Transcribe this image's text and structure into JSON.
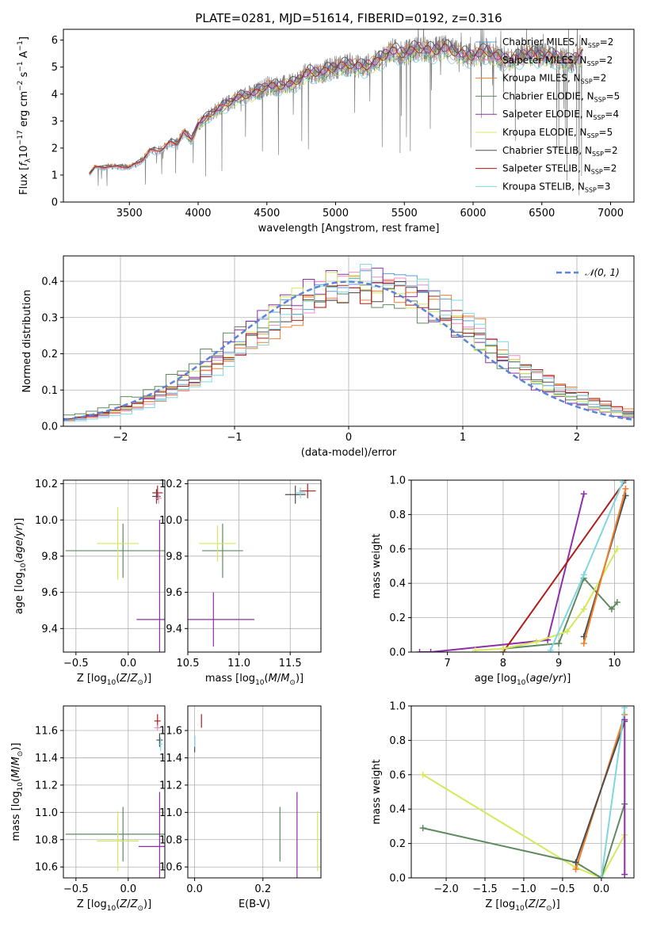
{
  "figure_title": "PLATE=0281, MJD=51614, FIBERID=0192, z=0.316",
  "colors": {
    "chabrier_miles": "#5b9bd5",
    "salpeter_miles": "#f08cc0",
    "kroupa_miles": "#f07f2b",
    "chabrier_elodie": "#5e8a5e",
    "salpeter_elodie": "#8e2ea8",
    "kroupa_elodie": "#d4e85a",
    "chabrier_stelib": "#4d4d4d",
    "salpeter_stelib": "#b01c1c",
    "kroupa_stelib": "#7fd6e0",
    "data": "#808080",
    "normal": "#5b84d8"
  },
  "legend_spectrum": [
    {
      "label": "Chabrier MILES, N",
      "sub": "SSP",
      "suffix": "=2",
      "color_key": "chabrier_miles"
    },
    {
      "label": "Salpeter MILES, N",
      "sub": "SSP",
      "suffix": "=2",
      "color_key": "salpeter_miles"
    },
    {
      "label": "Kroupa MILES, N",
      "sub": "SSP",
      "suffix": "=2",
      "color_key": "kroupa_miles"
    },
    {
      "label": "Chabrier ELODIE, N",
      "sub": "SSP",
      "suffix": "=5",
      "color_key": "chabrier_elodie"
    },
    {
      "label": "Salpeter ELODIE, N",
      "sub": "SSP",
      "suffix": "=4",
      "color_key": "salpeter_elodie"
    },
    {
      "label": "Kroupa ELODIE, N",
      "sub": "SSP",
      "suffix": "=5",
      "color_key": "kroupa_elodie"
    },
    {
      "label": "Chabrier STELIB, N",
      "sub": "SSP",
      "suffix": "=2",
      "color_key": "chabrier_stelib"
    },
    {
      "label": "Salpeter STELIB, N",
      "sub": "SSP",
      "suffix": "=2",
      "color_key": "salpeter_stelib"
    },
    {
      "label": "Kroupa STELIB, N",
      "sub": "SSP",
      "suffix": "=3",
      "color_key": "kroupa_stelib"
    }
  ],
  "legend_hist": {
    "label": "𝒩(0, 1)"
  },
  "chart_data": [
    {
      "id": "spectrum",
      "type": "line",
      "xlabel": "wavelength [Angstrom, rest frame]",
      "ylabel": "Flux [f_λ 10^-17 erg cm^-2 s^-1 A^-1]",
      "xlim": [
        3020,
        7170
      ],
      "ylim": [
        0,
        6.4
      ],
      "xticks": [
        3500,
        4000,
        4500,
        5000,
        5500,
        6000,
        6500,
        7000
      ],
      "yticks": [
        0,
        1,
        2,
        3,
        4,
        5,
        6
      ],
      "model_curve": {
        "x": [
          3200,
          3250,
          3300,
          3350,
          3400,
          3450,
          3500,
          3550,
          3600,
          3650,
          3700,
          3750,
          3800,
          3850,
          3900,
          3950,
          4000,
          4100,
          4200,
          4300,
          4400,
          4500,
          4600,
          4700,
          4800,
          4900,
          5000,
          5100,
          5200,
          5300,
          5400,
          5500,
          5600,
          5700,
          5800,
          5900,
          6000,
          6100,
          6200,
          6300,
          6400,
          6500,
          6600,
          6700,
          6800
        ],
        "y": [
          1.0,
          1.3,
          1.25,
          1.35,
          1.3,
          1.3,
          1.3,
          1.4,
          1.6,
          1.9,
          1.9,
          2.0,
          2.2,
          2.2,
          2.6,
          2.3,
          2.9,
          3.3,
          3.6,
          3.9,
          4.0,
          4.3,
          4.3,
          4.4,
          4.8,
          4.8,
          5.0,
          5.1,
          5.0,
          5.2,
          5.6,
          5.5,
          5.7,
          5.6,
          5.7,
          5.5,
          5.4,
          5.6,
          5.3,
          5.3,
          5.5,
          5.4,
          5.4,
          5.2,
          5.5
        ]
      },
      "series_scale": [
        1.0,
        0.97,
        1.02,
        0.98,
        1.01,
        0.96,
        1.03,
        1.0,
        0.94
      ]
    },
    {
      "id": "residual_hist",
      "type": "line",
      "xlabel": "(data-model)/error",
      "ylabel": "Normed distribution",
      "xlim": [
        -2.5,
        2.5
      ],
      "ylim": [
        0,
        0.47
      ],
      "xticks": [
        -2,
        -1,
        0,
        1,
        2
      ],
      "xticklabels": [
        "−2",
        "−1",
        "0",
        "1",
        "2"
      ],
      "yticks": [
        0.0,
        0.1,
        0.2,
        0.3,
        0.4
      ],
      "yticklabels": [
        "0.0",
        "0.1",
        "0.2",
        "0.3",
        "0.4"
      ]
    },
    {
      "id": "age_vs_Z",
      "type": "scatter",
      "xlabel": "Z [log10(Z/Z⊙)]",
      "ylabel": "age [log10(age/yr)]",
      "xlim": [
        -0.62,
        0.35
      ],
      "ylim": [
        9.27,
        10.22
      ],
      "xticks": [
        -0.5,
        0.0
      ],
      "xticklabels": [
        "−0.5",
        "0.0"
      ],
      "yticks": [
        9.4,
        9.6,
        9.8,
        10.0,
        10.2
      ],
      "yticklabels": [
        "9.4",
        "9.6",
        "9.8",
        "10.0",
        "10.2"
      ],
      "points": [
        {
          "x": -0.05,
          "y": 9.83,
          "xerr": 0.55,
          "yerr": 0.15,
          "color_key": "chabrier_elodie"
        },
        {
          "x": -0.1,
          "y": 9.87,
          "xerr": 0.2,
          "yerr": 0.2,
          "color_key": "kroupa_elodie"
        },
        {
          "x": 0.3,
          "y": 9.45,
          "xerr": 0.22,
          "yerr": 0.55,
          "color_key": "salpeter_elodie"
        },
        {
          "x": 0.28,
          "y": 10.15,
          "xerr": 0.05,
          "yerr": 0.04,
          "color_key": "salpeter_stelib"
        },
        {
          "x": 0.27,
          "y": 10.13,
          "xerr": 0.04,
          "yerr": 0.04,
          "color_key": "chabrier_stelib"
        },
        {
          "x": 0.29,
          "y": 10.12,
          "xerr": 0.03,
          "yerr": 0.03,
          "color_key": "salpeter_miles"
        }
      ]
    },
    {
      "id": "age_vs_mass",
      "type": "scatter",
      "xlabel": "mass [log10(M/M⊙)]",
      "ylabel": "",
      "xlim": [
        10.5,
        11.8
      ],
      "ylim": [
        9.27,
        10.22
      ],
      "xticks": [
        10.5,
        11.0,
        11.5
      ],
      "xticklabels": [
        "10.5",
        "11.0",
        "11.5"
      ],
      "yticks": [
        9.4,
        9.6,
        9.8,
        10.0,
        10.2
      ],
      "yticklabels": [
        "9.4",
        "9.6",
        "9.8",
        "10.0",
        "10.2"
      ],
      "points": [
        {
          "x": 10.84,
          "y": 9.83,
          "xerr": 0.2,
          "yerr": 0.15,
          "color_key": "chabrier_elodie"
        },
        {
          "x": 10.79,
          "y": 9.87,
          "xerr": 0.18,
          "yerr": 0.1,
          "color_key": "kroupa_elodie"
        },
        {
          "x": 10.75,
          "y": 9.45,
          "xerr": 0.4,
          "yerr": 0.15,
          "color_key": "salpeter_elodie"
        },
        {
          "x": 11.55,
          "y": 10.14,
          "xerr": 0.1,
          "yerr": 0.05,
          "color_key": "chabrier_stelib"
        },
        {
          "x": 11.67,
          "y": 10.16,
          "xerr": 0.08,
          "yerr": 0.04,
          "color_key": "salpeter_stelib"
        },
        {
          "x": 11.6,
          "y": 10.15,
          "xerr": 0.05,
          "yerr": 0.03,
          "color_key": "kroupa_stelib"
        }
      ]
    },
    {
      "id": "massweight_vs_age",
      "type": "line",
      "xlabel": "age [log10(age/yr)]",
      "ylabel": "mass weight",
      "xlim": [
        6.35,
        10.35
      ],
      "ylim": [
        0,
        1
      ],
      "xticks": [
        7,
        8,
        9,
        10
      ],
      "xticklabels": [
        "7",
        "8",
        "9",
        "10"
      ],
      "yticks": [
        0.0,
        0.2,
        0.4,
        0.6,
        0.8,
        1.0
      ],
      "yticklabels": [
        "0.0",
        "0.2",
        "0.4",
        "0.6",
        "0.8",
        "1.0"
      ],
      "series": [
        {
          "color_key": "salpeter_elodie",
          "x": [
            6.5,
            6.7,
            8.8,
            9.45
          ],
          "y": [
            0.0,
            0.0,
            0.07,
            0.92
          ]
        },
        {
          "color_key": "salpeter_stelib",
          "x": [
            8.0,
            10.2
          ],
          "y": [
            0.0,
            1.0
          ]
        },
        {
          "color_key": "chabrier_elodie",
          "x": [
            8.0,
            9.0,
            9.45,
            9.95,
            10.05
          ],
          "y": [
            0.02,
            0.05,
            0.43,
            0.25,
            0.29
          ]
        },
        {
          "color_key": "kroupa_elodie",
          "x": [
            7.5,
            8.0,
            8.6,
            9.15,
            9.45,
            10.05
          ],
          "y": [
            0.01,
            0.02,
            0.06,
            0.12,
            0.25,
            0.6
          ]
        },
        {
          "color_key": "kroupa_stelib",
          "x": [
            8.85,
            9.45,
            10.15
          ],
          "y": [
            0.01,
            0.45,
            0.99
          ]
        },
        {
          "color_key": "chabrier_stelib",
          "x": [
            9.45,
            10.2
          ],
          "y": [
            0.09,
            0.91
          ]
        },
        {
          "color_key": "kroupa_miles",
          "x": [
            9.45,
            10.2
          ],
          "y": [
            0.05,
            0.95
          ]
        }
      ]
    },
    {
      "id": "mass_vs_Z",
      "type": "scatter",
      "xlabel": "Z [log10(Z/Z⊙)]",
      "ylabel": "mass [log10(M/M⊙)]",
      "xlim": [
        -0.62,
        0.35
      ],
      "ylim": [
        10.52,
        11.78
      ],
      "xticks": [
        -0.5,
        0.0
      ],
      "xticklabels": [
        "−0.5",
        "0.0"
      ],
      "yticks": [
        10.6,
        10.8,
        11.0,
        11.2,
        11.4,
        11.6
      ],
      "yticklabels": [
        "10.6",
        "10.8",
        "11.0",
        "11.2",
        "11.4",
        "11.6"
      ],
      "points": [
        {
          "x": -0.05,
          "y": 10.84,
          "xerr": 0.55,
          "yerr": 0.2,
          "color_key": "chabrier_elodie"
        },
        {
          "x": -0.1,
          "y": 10.79,
          "xerr": 0.2,
          "yerr": 0.22,
          "color_key": "kroupa_elodie"
        },
        {
          "x": 0.3,
          "y": 10.75,
          "xerr": 0.2,
          "yerr": 0.4,
          "color_key": "salpeter_elodie"
        },
        {
          "x": 0.28,
          "y": 11.67,
          "xerr": 0.03,
          "yerr": 0.05,
          "color_key": "salpeter_stelib"
        },
        {
          "x": 0.28,
          "y": 11.62,
          "xerr": 0.03,
          "yerr": 0.02,
          "color_key": "salpeter_miles"
        },
        {
          "x": 0.3,
          "y": 11.53,
          "xerr": 0.03,
          "yerr": 0.05,
          "color_key": "chabrier_stelib"
        },
        {
          "x": 0.31,
          "y": 11.5,
          "xerr": 0.02,
          "yerr": 0.05,
          "color_key": "kroupa_stelib"
        }
      ]
    },
    {
      "id": "mass_vs_ebv",
      "type": "scatter",
      "xlabel": "E(B-V)",
      "ylabel": "",
      "xlim": [
        -0.02,
        0.37
      ],
      "ylim": [
        10.52,
        11.78
      ],
      "xticks": [
        0.0,
        0.2
      ],
      "xticklabels": [
        "0.0",
        "0.2"
      ],
      "yticks": [
        10.6,
        10.8,
        11.0,
        11.2,
        11.4,
        11.6
      ],
      "yticklabels": [
        "10.6",
        "10.8",
        "11.0",
        "11.2",
        "11.4",
        "11.6"
      ],
      "points": [
        {
          "x": 0.25,
          "y": 10.84,
          "yerr": 0.2,
          "color_key": "chabrier_elodie"
        },
        {
          "x": 0.36,
          "y": 10.79,
          "yerr": 0.22,
          "color_key": "kroupa_elodie"
        },
        {
          "x": 0.3,
          "y": 10.75,
          "yerr": 0.4,
          "color_key": "salpeter_elodie"
        },
        {
          "x": 0.02,
          "y": 11.67,
          "yerr": 0.05,
          "color_key": "salpeter_stelib"
        },
        {
          "x": 0.0,
          "y": 11.5,
          "yerr": 0.06,
          "color_key": "chabrier_stelib"
        },
        {
          "x": 0.0,
          "y": 11.52,
          "yerr": 0.04,
          "color_key": "kroupa_stelib"
        }
      ]
    },
    {
      "id": "massweight_vs_Z",
      "type": "line",
      "xlabel": "Z [log10(Z/Z⊙)]",
      "ylabel": "mass weight",
      "xlim": [
        -2.45,
        0.42
      ],
      "ylim": [
        0,
        1
      ],
      "xticks": [
        -2.0,
        -1.5,
        -1.0,
        -0.5,
        0.0
      ],
      "xticklabels": [
        "−2.0",
        "−1.5",
        "−1.0",
        "−0.5",
        "0.0"
      ],
      "yticks": [
        0.0,
        0.2,
        0.4,
        0.6,
        0.8,
        1.0
      ],
      "yticklabels": [
        "0.0",
        "0.2",
        "0.4",
        "0.6",
        "0.8",
        "1.0"
      ],
      "series": [
        {
          "color_key": "kroupa_elodie",
          "x": [
            -2.3,
            -0.33,
            0.0,
            0.3
          ],
          "y": [
            0.6,
            0.06,
            0.0,
            0.25
          ]
        },
        {
          "color_key": "chabrier_elodie",
          "x": [
            -2.3,
            -0.33,
            0.0,
            0.3
          ],
          "y": [
            0.29,
            0.09,
            0.0,
            0.43
          ]
        },
        {
          "color_key": "kroupa_miles",
          "x": [
            -0.33,
            0.3
          ],
          "y": [
            0.05,
            0.95
          ]
        },
        {
          "color_key": "chabrier_stelib",
          "x": [
            -0.33,
            0.3
          ],
          "y": [
            0.09,
            0.91
          ]
        },
        {
          "color_key": "kroupa_stelib",
          "x": [
            0.0,
            0.3
          ],
          "y": [
            0.0,
            0.99
          ]
        },
        {
          "color_key": "salpeter_elodie",
          "x": [
            0.3,
            0.3
          ],
          "y": [
            0.02,
            0.92
          ]
        }
      ]
    }
  ]
}
